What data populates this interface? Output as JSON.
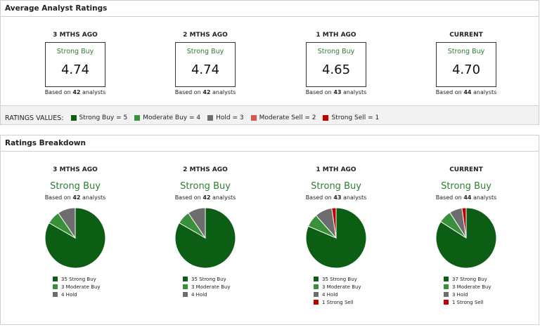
{
  "avg_panel": {
    "title": "Average Analyst Ratings",
    "columns": [
      {
        "period": "3 MTHS AGO",
        "label": "Strong Buy",
        "score": "4.74",
        "based_prefix": "Based on",
        "count": "42",
        "based_suffix": "analysts"
      },
      {
        "period": "2 MTHS AGO",
        "label": "Strong Buy",
        "score": "4.74",
        "based_prefix": "Based on",
        "count": "42",
        "based_suffix": "analysts"
      },
      {
        "period": "1 MTH AGO",
        "label": "Strong Buy",
        "score": "4.65",
        "based_prefix": "Based on",
        "count": "43",
        "based_suffix": "analysts"
      },
      {
        "period": "CURRENT",
        "label": "Strong Buy",
        "score": "4.70",
        "based_prefix": "Based on",
        "count": "44",
        "based_suffix": "analysts"
      }
    ],
    "values_label": "RATINGS VALUES:",
    "values": [
      {
        "text": "Strong Buy = 5",
        "color": "#0b5e14"
      },
      {
        "text": "Moderate Buy = 4",
        "color": "#3a8f3a"
      },
      {
        "text": "Hold = 3",
        "color": "#6d6d6d"
      },
      {
        "text": "Moderate Sell = 2",
        "color": "#d9534f"
      },
      {
        "text": "Strong Sell = 1",
        "color": "#c00000"
      }
    ]
  },
  "breakdown_panel": {
    "title": "Ratings Breakdown",
    "columns": [
      {
        "period": "3 MTHS AGO",
        "label": "Strong Buy",
        "based_prefix": "Based on",
        "count": "42",
        "based_suffix": "analysts",
        "legend": [
          "35 Strong Buy",
          "3 Moderate Buy",
          "4 Hold"
        ]
      },
      {
        "period": "2 MTHS AGO",
        "label": "Strong Buy",
        "based_prefix": "Based on",
        "count": "42",
        "based_suffix": "analysts",
        "legend": [
          "35 Strong Buy",
          "3 Moderate Buy",
          "4 Hold"
        ]
      },
      {
        "period": "1 MTH AGO",
        "label": "Strong Buy",
        "based_prefix": "Based on",
        "count": "43",
        "based_suffix": "analysts",
        "legend": [
          "35 Strong Buy",
          "3 Moderate Buy",
          "4 Hold",
          "1 Strong Sell"
        ]
      },
      {
        "period": "CURRENT",
        "label": "Strong Buy",
        "based_prefix": "Based on",
        "count": "44",
        "based_suffix": "analysts",
        "legend": [
          "37 Strong Buy",
          "3 Moderate Buy",
          "3 Hold",
          "1 Strong Sell"
        ]
      }
    ]
  },
  "chart_data": [
    {
      "type": "pie",
      "categories": [
        "Strong Buy",
        "Moderate Buy",
        "Hold"
      ],
      "values": [
        35,
        3,
        4
      ],
      "colors": [
        "#0b5e14",
        "#3a8f3a",
        "#6d6d6d"
      ]
    },
    {
      "type": "pie",
      "categories": [
        "Strong Buy",
        "Moderate Buy",
        "Hold"
      ],
      "values": [
        35,
        3,
        4
      ],
      "colors": [
        "#0b5e14",
        "#3a8f3a",
        "#6d6d6d"
      ]
    },
    {
      "type": "pie",
      "categories": [
        "Strong Buy",
        "Moderate Buy",
        "Hold",
        "Strong Sell"
      ],
      "values": [
        35,
        3,
        4,
        1
      ],
      "colors": [
        "#0b5e14",
        "#3a8f3a",
        "#6d6d6d",
        "#c00000"
      ]
    },
    {
      "type": "pie",
      "categories": [
        "Strong Buy",
        "Moderate Buy",
        "Hold",
        "Strong Sell"
      ],
      "values": [
        37,
        3,
        3,
        1
      ],
      "colors": [
        "#0b5e14",
        "#3a8f3a",
        "#6d6d6d",
        "#c00000"
      ]
    }
  ]
}
